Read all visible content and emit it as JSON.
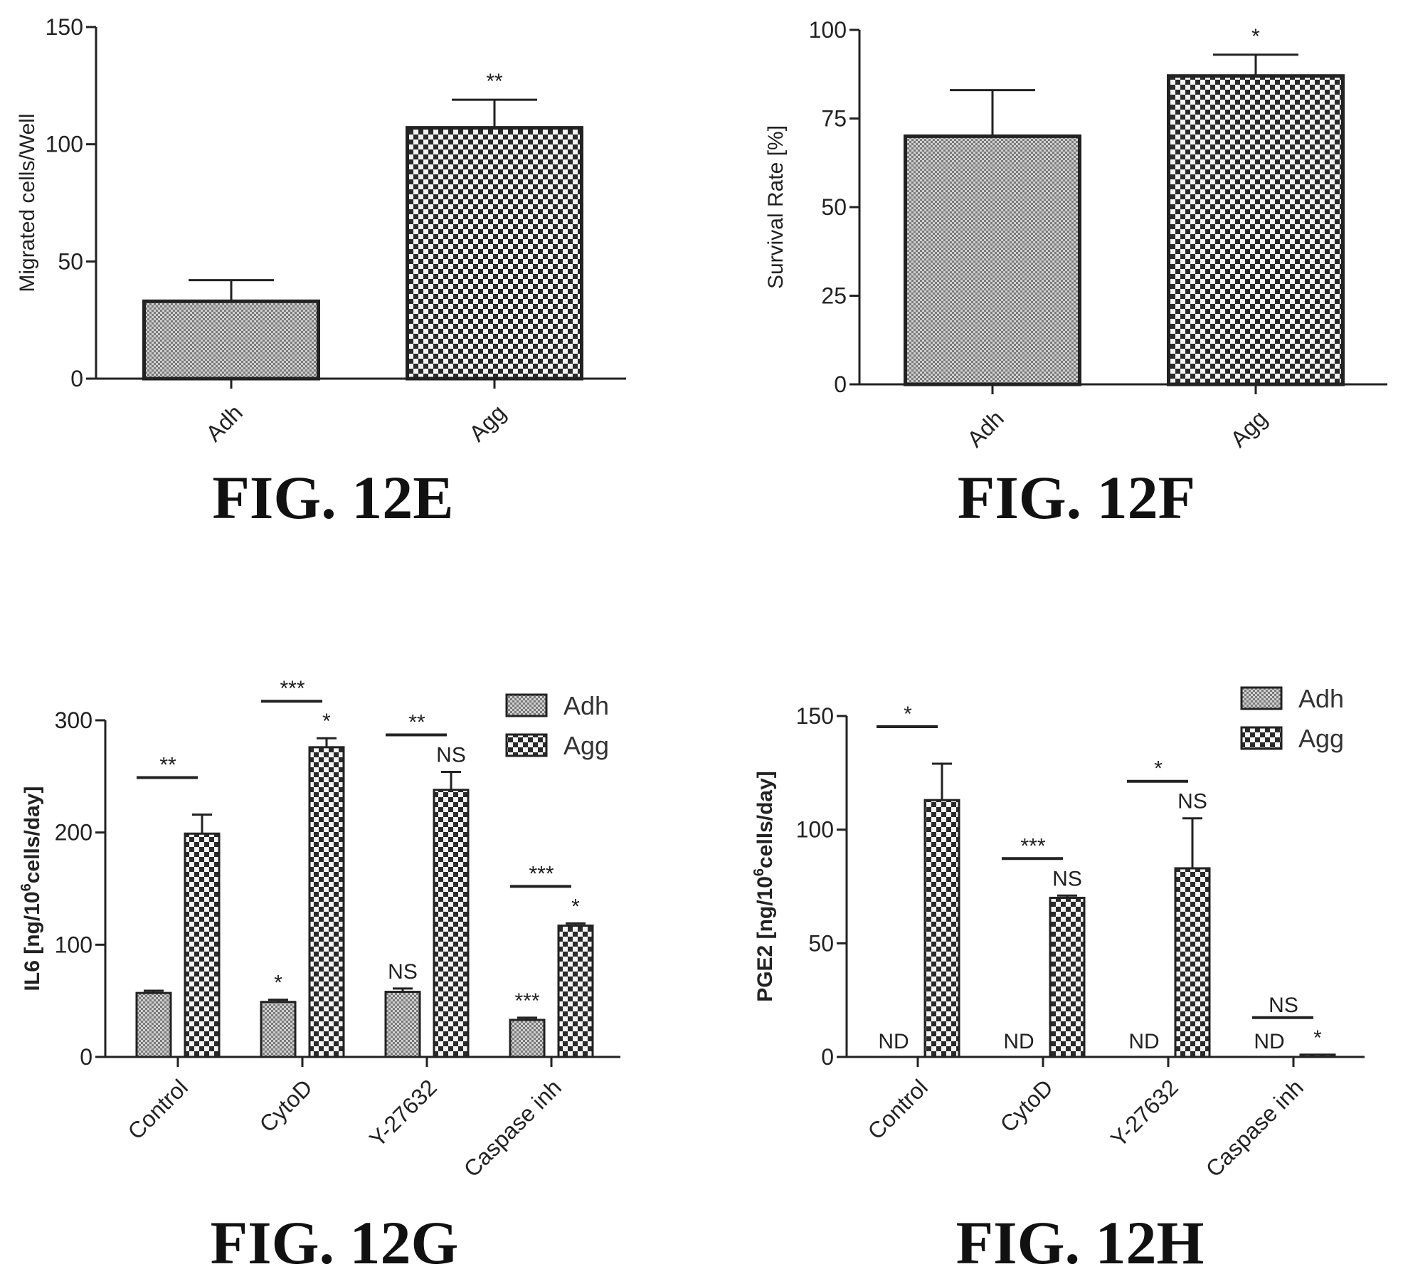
{
  "colors": {
    "ink": "#222222",
    "adh_fill": "#9a9a9a",
    "agg_fill": "#3a3a3a"
  },
  "charts": [
    {
      "caption": "FIG. 12E",
      "chart_data": {
        "type": "bar",
        "categories": [
          "Adh",
          "Agg"
        ],
        "values": [
          33,
          107
        ],
        "errors": [
          9,
          12
        ],
        "significance": [
          "",
          "**"
        ],
        "ylabel": "Migrated cells/Well",
        "ylim": [
          0,
          150
        ],
        "yticks": [
          0,
          50,
          100,
          150
        ],
        "grid": false
      }
    },
    {
      "caption": "FIG. 12F",
      "chart_data": {
        "type": "bar",
        "categories": [
          "Adh",
          "Agg"
        ],
        "values": [
          70,
          87
        ],
        "errors": [
          13,
          6
        ],
        "significance": [
          "",
          "*"
        ],
        "ylabel": "Survival Rate [%]",
        "ylim": [
          0,
          100
        ],
        "yticks": [
          0,
          25,
          50,
          75,
          100
        ],
        "grid": false
      }
    },
    {
      "caption": "FIG. 12G",
      "chart_data": {
        "type": "bar",
        "categories": [
          "Control",
          "CytoD",
          "Y-27632",
          "Caspase inh"
        ],
        "series": [
          {
            "name": "Adh",
            "values": [
              57,
              49,
              58,
              33
            ],
            "errors": [
              2,
              2,
              3,
              2
            ]
          },
          {
            "name": "Agg",
            "values": [
              199,
              276,
              238,
              117
            ],
            "errors": [
              17,
              8,
              16,
              2
            ]
          }
        ],
        "adh_labels": [
          "",
          "*",
          "NS",
          "***"
        ],
        "agg_labels": [
          "",
          "*",
          "NS",
          "*"
        ],
        "pair_labels": [
          "**",
          "***",
          "**",
          "***"
        ],
        "ylabel_main": "IL6 [ng/10",
        "ylabel_sup": "6",
        "ylabel_tail": "cells/day]",
        "ylim": [
          0,
          300
        ],
        "yticks": [
          0,
          100,
          200,
          300
        ],
        "legend_position": "top-right",
        "grid": false
      }
    },
    {
      "caption": "FIG. 12H",
      "chart_data": {
        "type": "bar",
        "categories": [
          "Control",
          "CytoD",
          "Y-27632",
          "Caspase inh"
        ],
        "series": [
          {
            "name": "Adh",
            "values": [
              0,
              0,
              0,
              0
            ],
            "errors": [
              0,
              0,
              0,
              0
            ]
          },
          {
            "name": "Agg",
            "values": [
              113,
              70,
              83,
              1
            ],
            "errors": [
              16,
              1,
              22,
              0
            ]
          }
        ],
        "adh_labels": [
          "ND",
          "ND",
          "ND",
          "ND"
        ],
        "agg_labels": [
          "",
          "NS",
          "NS",
          "*"
        ],
        "pair_labels": [
          "*",
          "***",
          "*",
          "NS"
        ],
        "ylabel_main": "PGE2 [ng/10",
        "ylabel_sup": "6",
        "ylabel_tail": "cells/day]",
        "ylim": [
          0,
          150
        ],
        "yticks": [
          0,
          50,
          100,
          150
        ],
        "legend_position": "top-right",
        "grid": false
      }
    }
  ]
}
